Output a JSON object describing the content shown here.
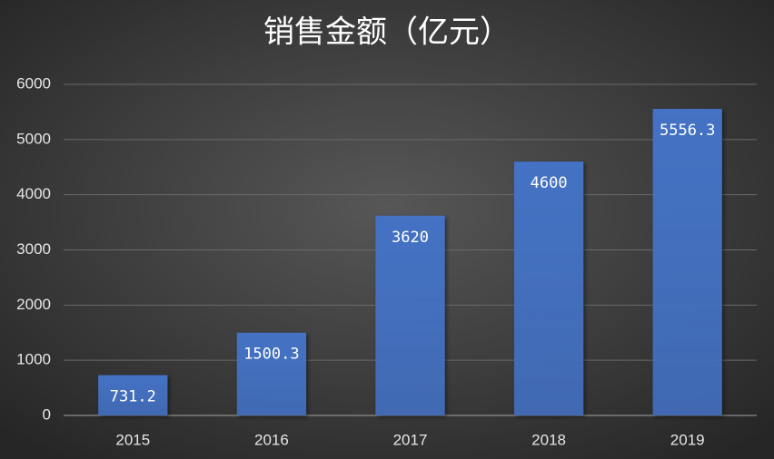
{
  "chart_data": {
    "type": "bar",
    "title": "销售金额（亿元）",
    "categories": [
      "2015",
      "2016",
      "2017",
      "2018",
      "2019"
    ],
    "values": [
      731.2,
      1500.3,
      3620,
      4600,
      5556.3
    ],
    "color": "#4472c4",
    "ylim": [
      0,
      6000
    ],
    "yticks": [
      0,
      1000,
      2000,
      3000,
      4000,
      5000,
      6000
    ],
    "grid": true
  }
}
